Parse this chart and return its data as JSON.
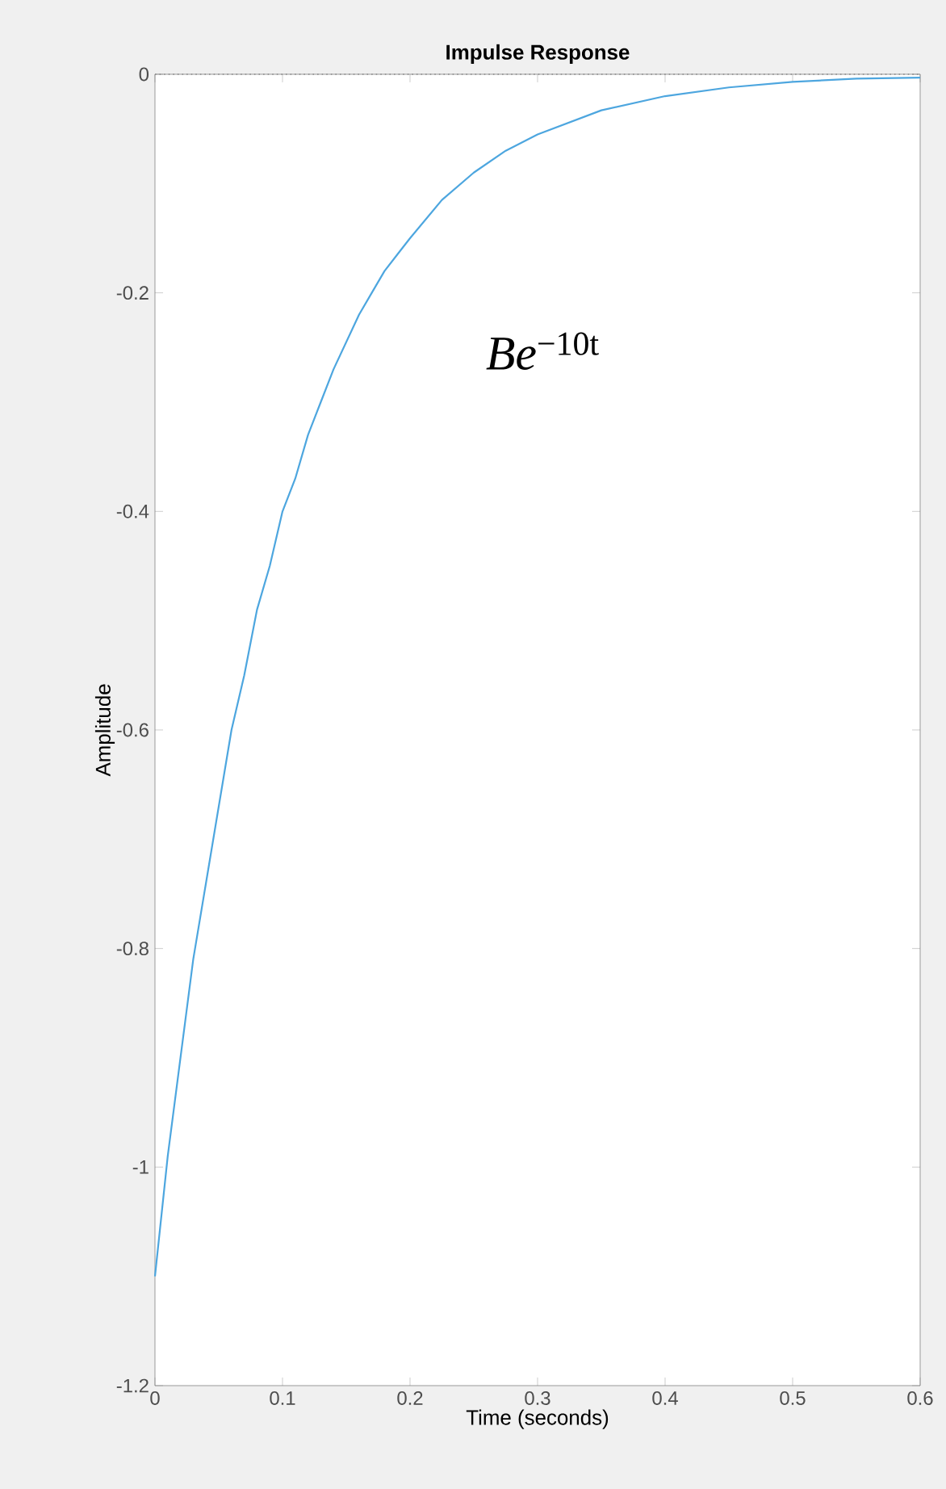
{
  "chart_data": {
    "type": "line",
    "title": "Impulse Response",
    "xlabel": "Time (seconds)",
    "ylabel": "Amplitude",
    "annotations": [
      "*Be*$^{−10t}$"
    ],
    "x": [
      0,
      0.01,
      0.02,
      0.03,
      0.04,
      0.05,
      0.06,
      0.07,
      0.08,
      0.09,
      0.1,
      0.11,
      0.12,
      0.13,
      0.14,
      0.15,
      0.16,
      0.17,
      0.18,
      0.19,
      0.2,
      0.225,
      0.25,
      0.275,
      0.3,
      0.35,
      0.4,
      0.45,
      0.5,
      0.55,
      0.6
    ],
    "series": [
      {
        "color": "#4da6df",
        "values": [
          -1.1,
          -0.99,
          -0.9,
          -0.81,
          -0.74,
          -0.67,
          -0.6,
          -0.55,
          -0.49,
          -0.45,
          -0.4,
          -0.37,
          -0.33,
          -0.3,
          -0.27,
          -0.245,
          -0.22,
          -0.2,
          -0.18,
          -0.165,
          -0.15,
          -0.115,
          -0.09,
          -0.07,
          -0.055,
          -0.033,
          -0.02,
          -0.012,
          -0.007,
          -0.004,
          -0.003
        ]
      }
    ],
    "xlim": [
      0,
      0.6
    ],
    "ylim": [
      -1.2,
      0
    ],
    "xticks": [
      0,
      0.1,
      0.2,
      0.3,
      0.4,
      0.5,
      0.6
    ],
    "yticks": [
      -1.2,
      -1,
      -0.8,
      -0.6,
      -0.4,
      -0.2,
      0
    ],
    "ref_lines": [
      {
        "axis": "y",
        "value": 0,
        "color": "#8c8c8c",
        "line_style": "dotted"
      }
    ],
    "marker": "none",
    "line_style": "solid"
  }
}
